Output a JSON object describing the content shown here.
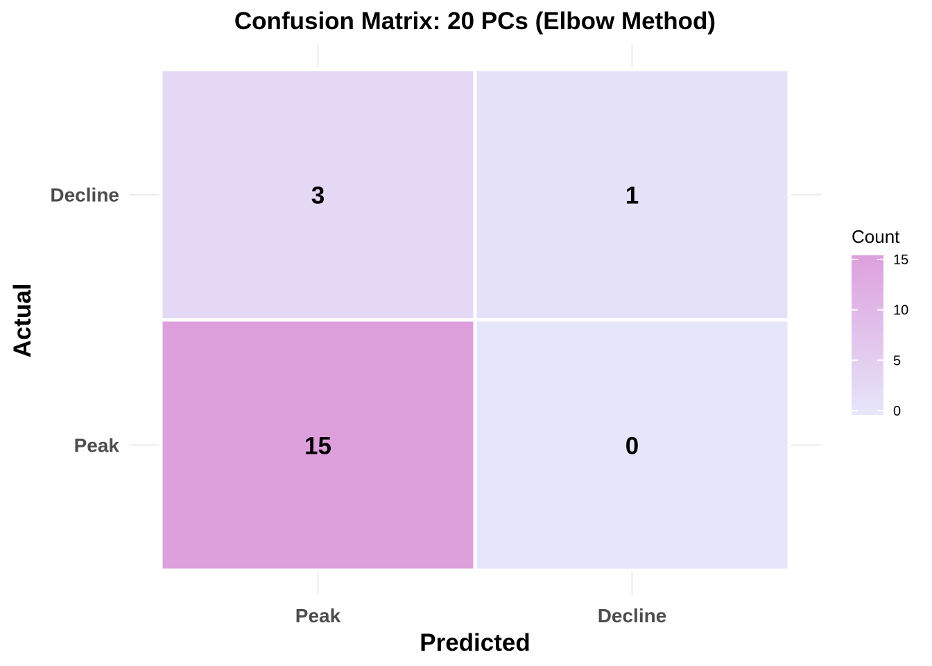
{
  "chart_data": {
    "type": "heatmap",
    "title": "Confusion Matrix: 20 PCs (Elbow Method)",
    "xlabel": "Predicted",
    "ylabel": "Actual",
    "x_categories": [
      "Peak",
      "Decline"
    ],
    "y_categories": [
      "Decline",
      "Peak"
    ],
    "cells": [
      {
        "actual": "Decline",
        "predicted": "Peak",
        "count": 3
      },
      {
        "actual": "Decline",
        "predicted": "Decline",
        "count": 1
      },
      {
        "actual": "Peak",
        "predicted": "Peak",
        "count": 15
      },
      {
        "actual": "Peak",
        "predicted": "Decline",
        "count": 0
      }
    ],
    "legend": {
      "title": "Count",
      "range": [
        0,
        15
      ],
      "ticks": [
        0,
        5,
        10,
        15
      ],
      "low_color": "#e6e6fa",
      "high_color": "#dda0dd",
      "placement": "right"
    },
    "grid": true
  }
}
